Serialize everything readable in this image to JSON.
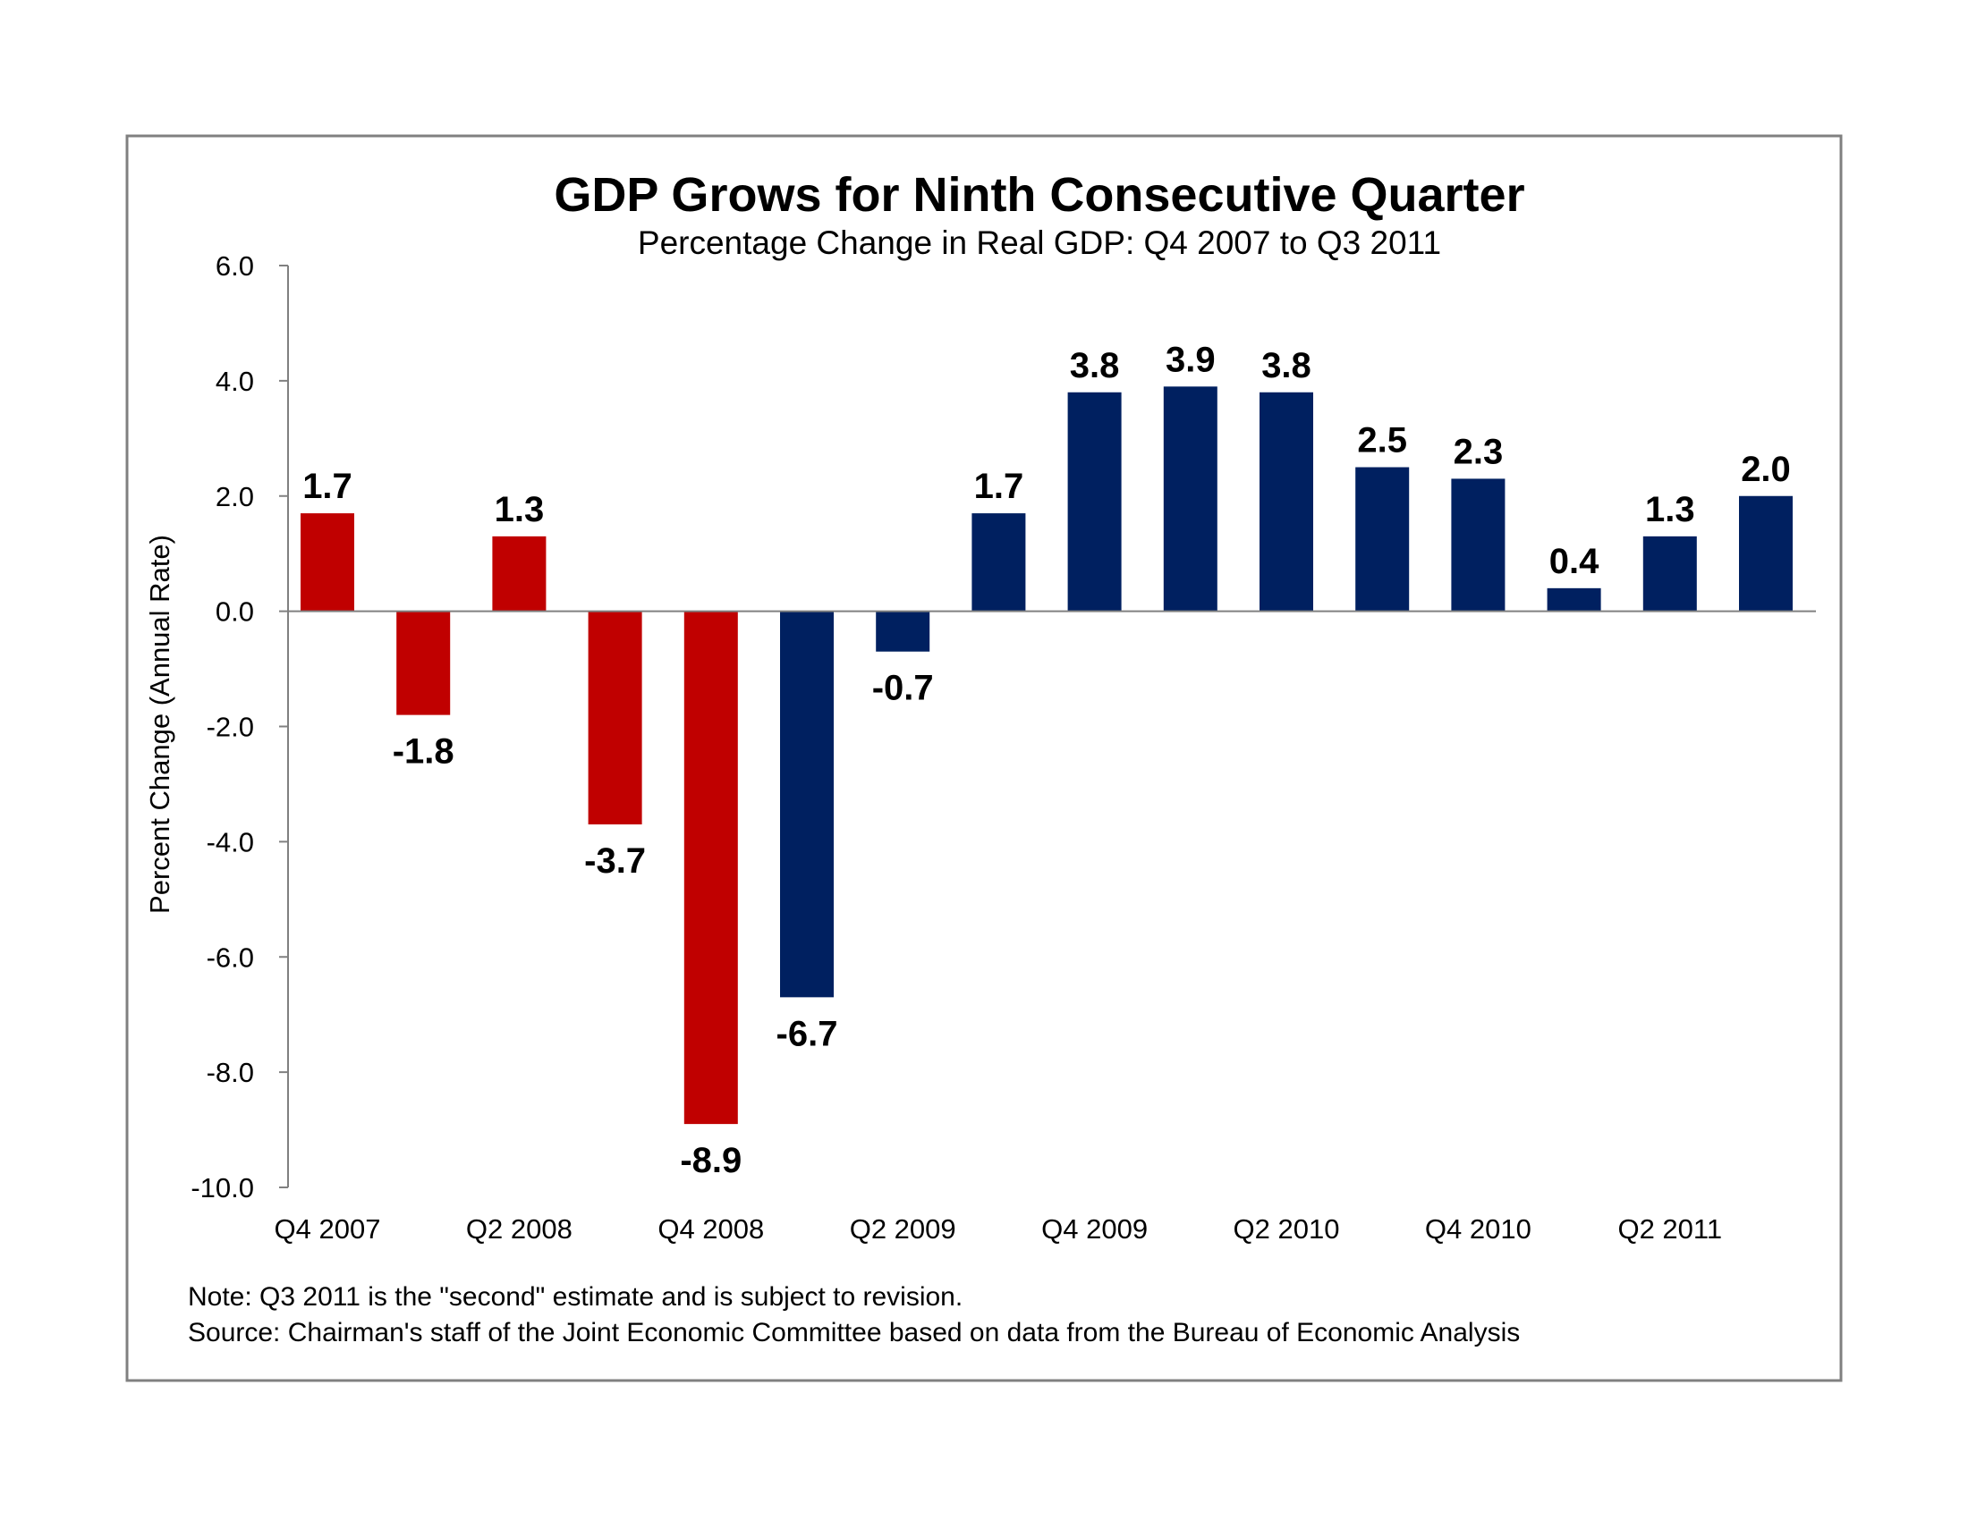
{
  "chart_data": {
    "type": "bar",
    "title": "GDP Grows for Ninth Consecutive Quarter",
    "subtitle": "Percentage Change in Real GDP: Q4 2007 to Q3 2011",
    "ylabel": "Percent Change (Annual Rate)",
    "xlabel": "",
    "ylim": [
      -10,
      6
    ],
    "yticks": [
      "6.0",
      "4.0",
      "2.0",
      "0.0",
      "-2.0",
      "-4.0",
      "-6.0",
      "-8.0",
      "-10.0"
    ],
    "ytick_values": [
      6,
      4,
      2,
      0,
      -2,
      -4,
      -6,
      -8,
      -10
    ],
    "categories": [
      "Q4 2007",
      "Q1 2008",
      "Q2 2008",
      "Q3 2008",
      "Q4 2008",
      "Q1 2009",
      "Q2 2009",
      "Q3 2009",
      "Q4 2009",
      "Q1 2010",
      "Q2 2010",
      "Q3 2010",
      "Q4 2010",
      "Q1 2011",
      "Q2 2011",
      "Q3 2011"
    ],
    "shown_xtick_labels": [
      "Q4 2007",
      "Q2 2008",
      "Q4 2008",
      "Q2 2009",
      "Q4 2009",
      "Q2 2010",
      "Q4 2010",
      "Q2 2011"
    ],
    "values": [
      1.7,
      -1.8,
      1.3,
      -3.7,
      -8.9,
      -6.7,
      -0.7,
      1.7,
      3.8,
      3.9,
      3.8,
      2.5,
      2.3,
      0.4,
      1.3,
      2.0
    ],
    "value_labels": [
      "1.7",
      "-1.8",
      "1.3",
      "-3.7",
      "-8.9",
      "-6.7",
      "-0.7",
      "1.7",
      "3.8",
      "3.9",
      "3.8",
      "2.5",
      "2.3",
      "0.4",
      "1.3",
      "2.0"
    ],
    "bar_colors": [
      "#c00000",
      "#c00000",
      "#c00000",
      "#c00000",
      "#c00000",
      "#002060",
      "#002060",
      "#002060",
      "#002060",
      "#002060",
      "#002060",
      "#002060",
      "#002060",
      "#002060",
      "#002060",
      "#002060"
    ],
    "grid": false
  },
  "notes": {
    "note": "Note: Q3 2011 is the \"second\" estimate and is subject to revision.",
    "source": "Source:  Chairman's staff of the Joint Economic Committee based on data from the Bureau of Economic Analysis"
  },
  "colors": {
    "red": "#c00000",
    "navy": "#002060",
    "frame": "#808080",
    "axis": "#808080"
  }
}
